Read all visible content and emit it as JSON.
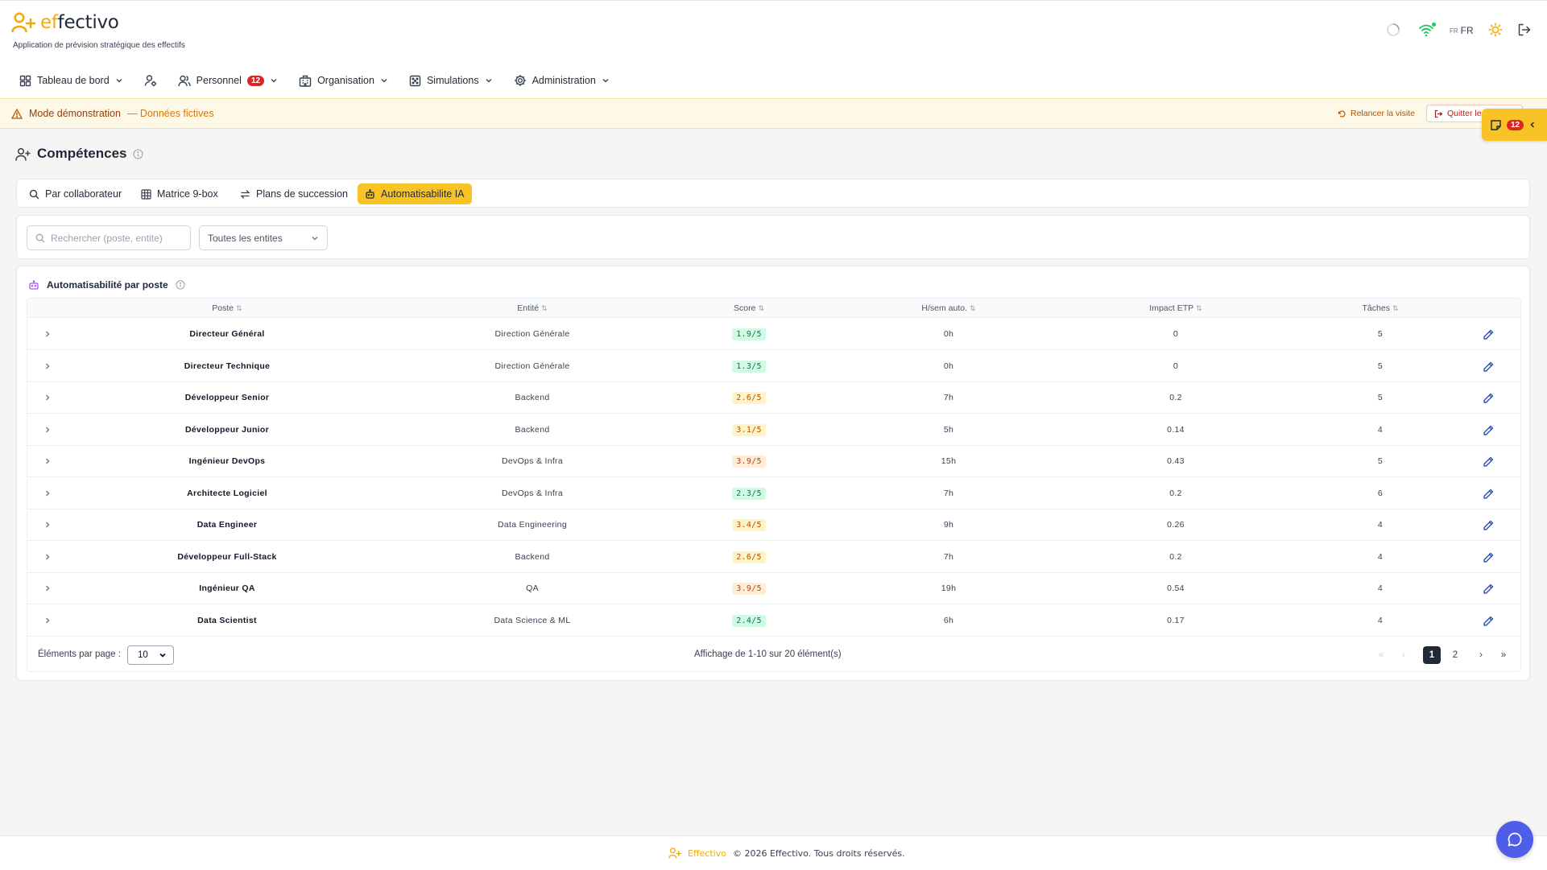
{
  "app": {
    "name_prefix": "ef",
    "name_suffix": "fectivo",
    "subtitle": "Application de prévision stratégique des effectifs",
    "lang_small": "FR",
    "lang": "FR"
  },
  "nav": {
    "dashboard": "Tableau de bord",
    "personnel": "Personnel",
    "personnel_badge": "12",
    "organisation": "Organisation",
    "simulations": "Simulations",
    "administration": "Administration"
  },
  "banner": {
    "mode": "Mode démonstration",
    "data": "— Données fictives",
    "relaunch": "Relancer la visite",
    "quit": "Quitter le"
  },
  "floating": {
    "badge": "12"
  },
  "page": {
    "title": "Compétences"
  },
  "tabs": [
    {
      "label": "Par collaborateur"
    },
    {
      "label": "Matrice 9-box"
    },
    {
      "label": "Plans de succession"
    },
    {
      "label": "Automatisabilite IA"
    }
  ],
  "filters": {
    "search_placeholder": "Rechercher (poste, entite)",
    "entity_select": "Toutes les entites"
  },
  "table": {
    "title": "Automatisabilité par poste",
    "headers": {
      "poste": "Poste",
      "entite": "Entité",
      "score": "Score",
      "hsem": "H/sem auto.",
      "impact": "Impact ETP",
      "taches": "Tâches"
    },
    "rows": [
      {
        "poste": "Directeur Général",
        "entite": "Direction Générale",
        "score": "1.9/5",
        "hsem": "0h",
        "impact": "0",
        "taches": "5"
      },
      {
        "poste": "Directeur Technique",
        "entite": "Direction Générale",
        "score": "1.3/5",
        "hsem": "0h",
        "impact": "0",
        "taches": "5"
      },
      {
        "poste": "Développeur Senior",
        "entite": "Backend",
        "score": "2.6/5",
        "hsem": "7h",
        "impact": "0.2",
        "taches": "5"
      },
      {
        "poste": "Développeur Junior",
        "entite": "Backend",
        "score": "3.1/5",
        "hsem": "5h",
        "impact": "0.14",
        "taches": "4"
      },
      {
        "poste": "Ingénieur DevOps",
        "entite": "DevOps & Infra",
        "score": "3.9/5",
        "hsem": "15h",
        "impact": "0.43",
        "taches": "5"
      },
      {
        "poste": "Architecte Logiciel",
        "entite": "DevOps & Infra",
        "score": "2.3/5",
        "hsem": "7h",
        "impact": "0.2",
        "taches": "6"
      },
      {
        "poste": "Data Engineer",
        "entite": "Data Engineering",
        "score": "3.4/5",
        "hsem": "9h",
        "impact": "0.26",
        "taches": "4"
      },
      {
        "poste": "Développeur Full-Stack",
        "entite": "Backend",
        "score": "2.6/5",
        "hsem": "7h",
        "impact": "0.2",
        "taches": "4"
      },
      {
        "poste": "Ingénieur QA",
        "entite": "QA",
        "score": "3.9/5",
        "hsem": "19h",
        "impact": "0.54",
        "taches": "4"
      },
      {
        "poste": "Data Scientist",
        "entite": "Data Science & ML",
        "score": "2.4/5",
        "hsem": "6h",
        "impact": "0.17",
        "taches": "4"
      }
    ]
  },
  "pagination": {
    "per_page_label": "Éléments par page :",
    "per_page": "10",
    "info": "Affichage de 1-10 sur 20 élément(s)",
    "pages": [
      "1",
      "2"
    ],
    "current": "1"
  },
  "footer": {
    "brand": "Effectivo",
    "text": "© 2026 Effectivo. Tous droits réservés."
  },
  "colors": {
    "accent": "#f8c327",
    "score_low_bg": "#d1fae5",
    "score_low_fg": "#047857",
    "score_mid_bg": "#fef3c7",
    "score_mid_fg": "#b45309",
    "score_high_bg": "#ffedd5",
    "score_high_fg": "#c2410c",
    "edit_icon": "#2f4fb5"
  }
}
